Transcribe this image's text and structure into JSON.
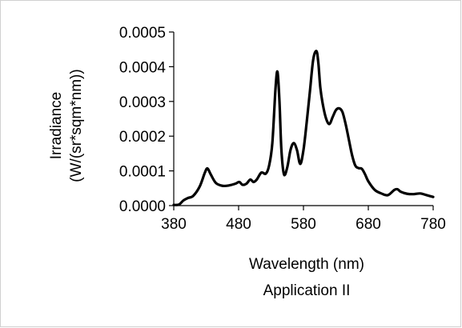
{
  "chart_data": {
    "type": "line",
    "xlabel": "Wavelength (nm)",
    "subtitle": "Application II",
    "ylabel_lines": [
      "Irradiance",
      "(W/(sr*sqm*nm))"
    ],
    "xlim": [
      380,
      780
    ],
    "ylim": [
      0,
      0.0005
    ],
    "x_ticks": [
      380,
      480,
      580,
      680,
      780
    ],
    "y_ticks": [
      0.0,
      0.0001,
      0.0002,
      0.0003,
      0.0004,
      0.0005
    ],
    "x_tick_labels": [
      "380",
      "480",
      "580",
      "680",
      "780"
    ],
    "y_tick_labels": [
      "0.0000",
      "0.0001",
      "0.0002",
      "0.0003",
      "0.0004",
      "0.0005"
    ],
    "grid": false,
    "line_color": "#000000",
    "series": [
      {
        "x": [
          380,
          388,
          395,
          402,
          410,
          420,
          428,
          432,
          437,
          445,
          455,
          465,
          475,
          481,
          486,
          492,
          498,
          503,
          508,
          515,
          522,
          527,
          532,
          537,
          540,
          543,
          546,
          550,
          555,
          560,
          565,
          570,
          575,
          580,
          585,
          590,
          595,
          600,
          603,
          606,
          610,
          615,
          620,
          625,
          630,
          635,
          640,
          645,
          650,
          655,
          660,
          665,
          670,
          675,
          680,
          690,
          700,
          710,
          720,
          725,
          730,
          740,
          750,
          760,
          770,
          780
        ],
        "y": [
          2e-06,
          3e-06,
          1.5e-05,
          2.2e-05,
          2.8e-05,
          5.5e-05,
          9.5e-05,
          0.000107,
          9e-05,
          6.5e-05,
          5.7e-05,
          5.8e-05,
          6.3e-05,
          6.8e-05,
          6e-05,
          6.3e-05,
          7.5e-05,
          6.8e-05,
          7.5e-05,
          9.5e-05,
          9.2e-05,
          0.000115,
          0.00018,
          0.00034,
          0.000385,
          0.0003,
          0.00016,
          9e-05,
          0.00011,
          0.00016,
          0.00018,
          0.00016,
          0.00012,
          0.00016,
          0.00024,
          0.00033,
          0.00042,
          0.000445,
          0.00041,
          0.00034,
          0.00029,
          0.00025,
          0.000235,
          0.000255,
          0.000275,
          0.00028,
          0.00027,
          0.000235,
          0.00019,
          0.000145,
          0.000115,
          0.000108,
          0.000106,
          9e-05,
          7e-05,
          4.5e-05,
          3.5e-05,
          3e-05,
          4.5e-05,
          4.7e-05,
          4e-05,
          3.4e-05,
          3.3e-05,
          3.5e-05,
          3e-05,
          2.5e-05
        ]
      }
    ]
  }
}
